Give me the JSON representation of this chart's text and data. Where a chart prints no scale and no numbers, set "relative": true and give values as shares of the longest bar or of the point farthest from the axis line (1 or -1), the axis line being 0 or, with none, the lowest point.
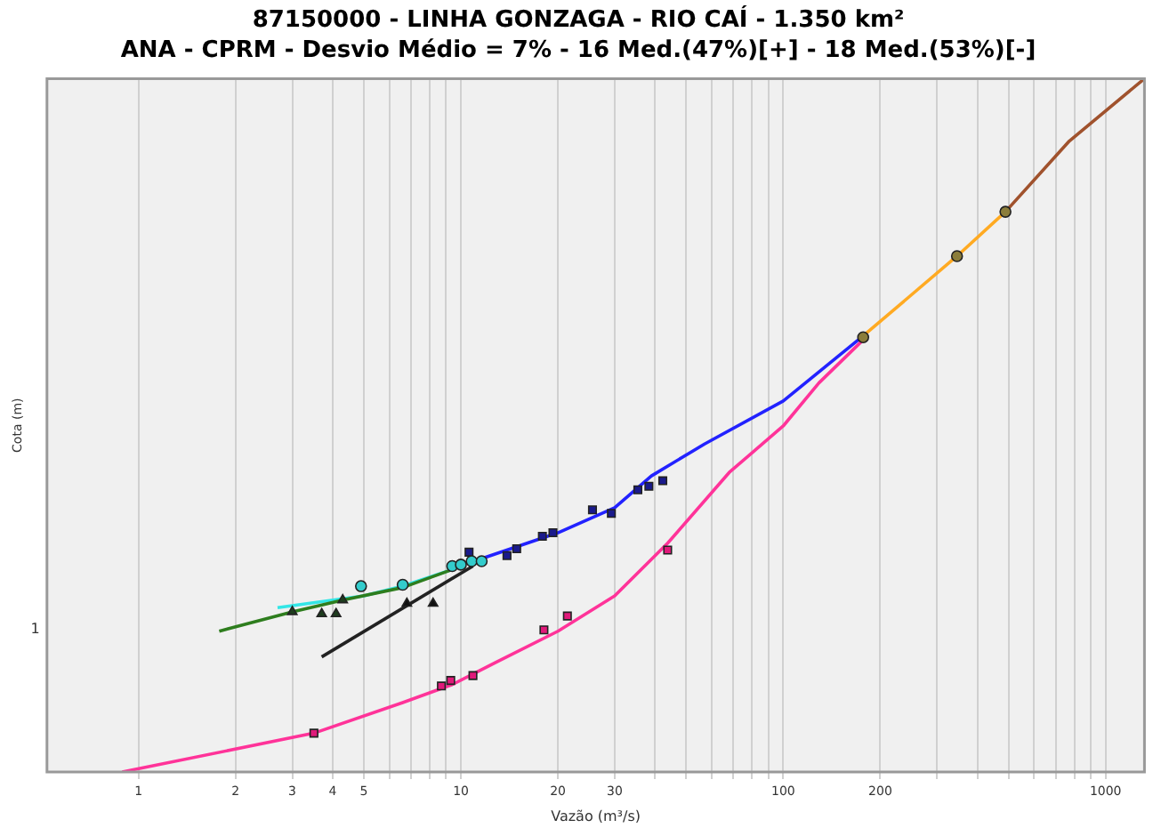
{
  "chart_data": {
    "type": "line",
    "title": "87150000 - LINHA GONZAGA - RIO CAÍ - 1.350 km²",
    "subtitle": "ANA - CPRM - Desvio Médio = 7% - 16 Med.(47%)[+] - 18 Med.(53%)[-]",
    "xlabel": "Vazão (m³/s)",
    "ylabel": "Cota (m)",
    "log": "x",
    "relative": true,
    "grid": "x",
    "xlim": [
      0.52,
      1320
    ],
    "xticks": [
      1,
      2,
      3,
      4,
      5,
      {
        "value": 6,
        "label": null
      },
      {
        "value": 7,
        "label": null
      },
      {
        "value": 8,
        "label": null
      },
      {
        "value": 9,
        "label": null
      },
      10,
      20,
      30,
      {
        "value": 40,
        "label": null
      },
      {
        "value": 50,
        "label": null
      },
      {
        "value": 60,
        "label": null
      },
      {
        "value": 70,
        "label": null
      },
      {
        "value": 80,
        "label": null
      },
      {
        "value": 90,
        "label": null
      },
      100,
      200,
      {
        "value": 300,
        "label": null
      },
      {
        "value": 400,
        "label": null
      },
      {
        "value": 500,
        "label": null
      },
      {
        "value": 600,
        "label": null
      },
      {
        "value": 700,
        "label": null
      },
      {
        "value": 800,
        "label": null
      },
      {
        "value": 900,
        "label": null
      },
      1000
    ],
    "annotations": [
      "1"
    ],
    "series": [
      {
        "type": "line",
        "marker": "none",
        "color": "#ff3399",
        "x": [
          0.89,
          3.5,
          6.6,
          9.4,
          12.7,
          20,
          30,
          43.8,
          68,
          100,
          129,
          175
        ],
        "values": [
          0,
          0.056,
          0.1,
          0.126,
          0.157,
          0.203,
          0.254,
          0.33,
          0.432,
          0.499,
          0.561,
          0.621
        ]
      },
      {
        "type": "line",
        "marker": "none",
        "color": "#2222ff",
        "x": [
          11.3,
          20,
          30,
          39,
          57,
          100,
          175
        ],
        "values": [
          0.306,
          0.345,
          0.381,
          0.427,
          0.473,
          0.535,
          0.627
        ]
      },
      {
        "type": "line",
        "marker": "none",
        "color": "#ffaa22",
        "x": [
          175,
          346,
          489
        ],
        "values": [
          0.627,
          0.744,
          0.808
        ]
      },
      {
        "type": "line",
        "marker": "none",
        "color": "#a0522d",
        "x": [
          489,
          772,
          1320
        ],
        "values": [
          0.808,
          0.91,
          1
        ]
      },
      {
        "type": "line",
        "marker": "none",
        "color": "#2e7d1e",
        "x": [
          1.78,
          3,
          4.3,
          6.6,
          9.4
        ],
        "values": [
          0.203,
          0.231,
          0.248,
          0.266,
          0.292
        ]
      },
      {
        "type": "line",
        "marker": "none",
        "color": "#33e6e6",
        "x": [
          2.7,
          5,
          6.6,
          9.4
        ],
        "values": [
          0.237,
          0.254,
          0.268,
          0.292
        ]
      },
      {
        "type": "line",
        "marker": "none",
        "color": "#222222",
        "x": [
          3.7,
          10.9
        ],
        "values": [
          0.166,
          0.297
        ]
      },
      {
        "type": "scatter",
        "marker": "triangle",
        "color": "#1e3d1e",
        "x": [
          3,
          3.7,
          4.1,
          4.3
        ],
        "values": [
          0.231,
          0.228,
          0.228,
          0.248
        ]
      },
      {
        "type": "scatter",
        "marker": "circle",
        "color": "#33cccc",
        "x": [
          4.9,
          6.6,
          9.4,
          10,
          10.8,
          11.6
        ],
        "values": [
          0.268,
          0.27,
          0.297,
          0.299,
          0.304,
          0.304
        ]
      },
      {
        "type": "scatter",
        "marker": "triangle",
        "color": "#111111",
        "x": [
          6.8,
          8.2
        ],
        "values": [
          0.243,
          0.243
        ]
      },
      {
        "type": "scatter",
        "marker": "square",
        "color": "#1a1a8c",
        "x": [
          10.6,
          13.9,
          14.9,
          17.9,
          19.3,
          25.6,
          29.3,
          35.4,
          38.3,
          42.3
        ],
        "values": [
          0.317,
          0.312,
          0.322,
          0.34,
          0.345,
          0.378,
          0.373,
          0.407,
          0.412,
          0.42
        ]
      },
      {
        "type": "scatter",
        "marker": "square",
        "color": "#e0197a",
        "x": [
          3.5,
          8.7,
          9.3,
          10.9,
          18.1,
          21.4,
          43.8
        ],
        "values": [
          0.056,
          0.124,
          0.132,
          0.139,
          0.205,
          0.225,
          0.32
        ]
      },
      {
        "type": "scatter",
        "marker": "circle",
        "color": "#8b7d3a",
        "x": [
          177,
          346,
          489
        ],
        "values": [
          0.627,
          0.744,
          0.808
        ]
      }
    ]
  }
}
